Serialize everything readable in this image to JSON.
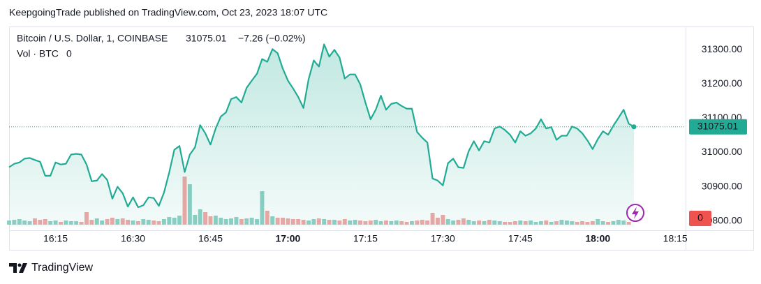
{
  "header": {
    "text": "KeepgoingTrade published on TradingView.com, Oct 23, 2023 18:07 UTC"
  },
  "chart_data": {
    "type": "line",
    "symbol": "Bitcoin / U.S. Dollar, 1, COINBASE",
    "change_label": "−7.26 (−0.02%)",
    "volume_label": "Vol · BTC",
    "color": "#22ab94",
    "x": [
      966,
      967,
      968,
      969,
      970,
      971,
      972,
      973,
      974,
      975,
      976,
      977,
      978,
      979,
      980,
      981,
      982,
      983,
      984,
      985,
      986,
      987,
      988,
      989,
      990,
      991,
      992,
      993,
      994,
      995,
      996,
      997,
      998,
      999,
      1000,
      1001,
      1002,
      1003,
      1004,
      1005,
      1006,
      1007,
      1008,
      1009,
      1010,
      1011,
      1012,
      1013,
      1014,
      1015,
      1016,
      1017,
      1018,
      1019,
      1020,
      1021,
      1022,
      1023,
      1024,
      1025,
      1026,
      1027,
      1028,
      1029,
      1030,
      1031,
      1032,
      1033,
      1034,
      1035,
      1036,
      1037,
      1038,
      1039,
      1040,
      1041,
      1042,
      1043,
      1044,
      1045,
      1046,
      1047,
      1048,
      1049,
      1050,
      1051,
      1052,
      1053,
      1054,
      1055,
      1056,
      1057,
      1058,
      1059,
      1060,
      1061,
      1062,
      1063,
      1064,
      1065,
      1066,
      1067,
      1068,
      1069,
      1070,
      1071,
      1072,
      1073,
      1074,
      1075,
      1076,
      1077,
      1078,
      1079,
      1080,
      1081,
      1082,
      1083,
      1084,
      1085,
      1086,
      1087
    ],
    "values": [
      30957,
      30967,
      30971,
      30982,
      30984,
      30978,
      30973,
      30932,
      30932,
      30971,
      30965,
      30967,
      30994,
      30996,
      30994,
      30965,
      30916,
      30918,
      30937,
      30920,
      30865,
      30900,
      30881,
      30842,
      30869,
      30840,
      30846,
      30869,
      30867,
      30844,
      30883,
      30941,
      31008,
      31019,
      30943,
      30994,
      31015,
      31080,
      31056,
      31023,
      31070,
      31105,
      31117,
      31156,
      31162,
      31146,
      31189,
      31210,
      31230,
      31273,
      31265,
      31302,
      31290,
      31245,
      31210,
      31187,
      31162,
      31130,
      31214,
      31269,
      31251,
      31316,
      31280,
      31300,
      31277,
      31216,
      31228,
      31228,
      31199,
      31146,
      31097,
      31125,
      31166,
      31125,
      31142,
      31146,
      31136,
      31128,
      31128,
      31060,
      31043,
      31029,
      30924,
      30918,
      30904,
      30969,
      30982,
      30957,
      30955,
      31004,
      31033,
      31006,
      31033,
      31029,
      31070,
      31076,
      31066,
      31052,
      31029,
      31062,
      31049,
      31056,
      31070,
      31097,
      31070,
      31074,
      31037,
      31049,
      31049,
      31076,
      31070,
      31056,
      31035,
      31010,
      31039,
      31062,
      31052,
      31078,
      31101,
      31125,
      31084,
      31075.01
    ],
    "volume": {
      "values": [
        1.2,
        1.4,
        1.6,
        1.2,
        1.0,
        1.8,
        1.4,
        1.6,
        1.0,
        1.2,
        0.8,
        1.2,
        1.0,
        1.0,
        0.8,
        3.6,
        1.4,
        1.8,
        1.2,
        1.6,
        2.0,
        1.6,
        1.8,
        1.4,
        1.2,
        1.0,
        1.6,
        1.4,
        1.2,
        1.0,
        1.6,
        2.2,
        2.0,
        2.6,
        13.8,
        11.6,
        2.8,
        4.4,
        3.6,
        2.4,
        2.6,
        2.0,
        1.6,
        1.8,
        2.2,
        1.6,
        1.8,
        2.0,
        1.6,
        9.6,
        4.0,
        2.4,
        2.0,
        2.0,
        1.8,
        1.6,
        1.6,
        1.4,
        1.2,
        1.6,
        1.8,
        1.6,
        1.4,
        1.4,
        1.2,
        1.6,
        1.2,
        1.4,
        1.2,
        1.0,
        1.2,
        1.4,
        1.0,
        1.2,
        1.0,
        1.2,
        1.0,
        0.8,
        1.0,
        1.2,
        1.4,
        1.2,
        3.4,
        2.0,
        2.8,
        1.6,
        1.2,
        1.4,
        1.8,
        1.4,
        1.0,
        1.2,
        1.0,
        1.4,
        1.2,
        1.0,
        0.8,
        0.8,
        1.0,
        1.2,
        1.0,
        1.2,
        0.8,
        1.0,
        1.2,
        0.8,
        1.0,
        1.4,
        1.2,
        1.0,
        0.8,
        1.0,
        0.8,
        1.0,
        1.6,
        1.0,
        0.8,
        1.0,
        1.4,
        1.2,
        0.8,
        0
      ],
      "up_color": "#8fd0c5",
      "down_color": "#f3a7a5",
      "label_color": "#ef5350"
    },
    "xlim": [
      966,
      1097
    ],
    "xticks": [
      {
        "value": 975,
        "label": "16:15"
      },
      {
        "value": 990,
        "label": "16:30"
      },
      {
        "value": 1005,
        "label": "16:45"
      },
      {
        "value": 1020,
        "label": "17:00"
      },
      {
        "value": 1035,
        "label": "17:15"
      },
      {
        "value": 1050,
        "label": "17:30"
      },
      {
        "value": 1065,
        "label": "17:45"
      },
      {
        "value": 1080,
        "label": "18:00"
      },
      {
        "value": 1095,
        "label": "18:15"
      }
    ],
    "ylim": [
      30783,
      31368
    ],
    "yticks": [
      {
        "value": 30800,
        "label": "30800.00"
      },
      {
        "value": 30900,
        "label": "30900.00"
      },
      {
        "value": 31000,
        "label": "31000.00"
      },
      {
        "value": 31100,
        "label": "31100.00"
      },
      {
        "value": 31200,
        "label": "31200.00"
      },
      {
        "value": 31300,
        "label": "31300.00"
      }
    ],
    "grid": false
  },
  "footer": {
    "brand": "TradingView"
  }
}
